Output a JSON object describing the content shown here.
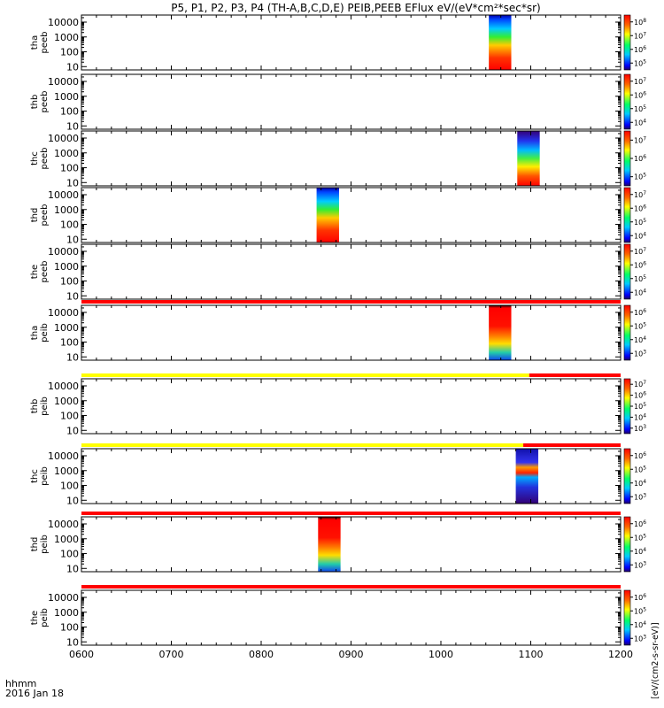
{
  "title": "P5, P1, P2, P3, P4 (TH-A,B,C,D,E) PEIB,PEEB EFlux eV/(eV*cm²*sec*sr)",
  "colorbar_label": "[eV/(cm2-s-sr-eV)]",
  "footer": {
    "time_unit": "hhmm",
    "date": "2016 Jan 18"
  },
  "colors": {
    "bar_red": "#ff0000",
    "bar_yellow": "#ffff00"
  },
  "chart_data": {
    "type": "heatmap",
    "x_axis": {
      "range": [
        "0600",
        "1200"
      ],
      "tick_labels": [
        "0600",
        "0700",
        "0800",
        "0900",
        "1000",
        "1100",
        "1200"
      ]
    },
    "y_axis": {
      "scale": "log",
      "range": [
        6,
        30000
      ],
      "tick_labels": [
        "10",
        "100",
        "1000",
        "10000"
      ]
    },
    "panels": [
      {
        "label": [
          "tha",
          "peeb"
        ],
        "cbar_exps": [
          "5",
          "6",
          "7",
          "8"
        ],
        "cbar_scale": "5",
        "blocks": [
          {
            "start": "1032",
            "end": "1047",
            "profile": "electron"
          }
        ]
      },
      {
        "label": [
          "thb",
          "peeb"
        ],
        "cbar_exps": [
          "4",
          "5",
          "6",
          "7"
        ],
        "cbar_scale": "4",
        "blocks": []
      },
      {
        "label": [
          "thc",
          "peeb"
        ],
        "cbar_exps": [
          "5",
          "6",
          "7"
        ],
        "cbar_scale": "5",
        "blocks": [
          {
            "start": "1051",
            "end": "1066",
            "profile": "electron_dark"
          }
        ]
      },
      {
        "label": [
          "thd",
          "peeb"
        ],
        "cbar_exps": [
          "4",
          "5",
          "6",
          "7"
        ],
        "cbar_scale": "4",
        "blocks": [
          {
            "start": "0837",
            "end": "0852",
            "profile": "electron"
          }
        ]
      },
      {
        "label": [
          "the",
          "peeb"
        ],
        "cbar_exps": [
          "4",
          "5",
          "6",
          "7"
        ],
        "cbar_scale": "4",
        "blocks": []
      },
      {
        "label": [
          "tha",
          "peib"
        ],
        "cbar_exps": [
          "3",
          "4",
          "5",
          "6"
        ],
        "cbar_scale": "3",
        "bar": [
          {
            "start": "0600",
            "end": "1200",
            "color": "red"
          }
        ],
        "blocks": [
          {
            "start": "1032",
            "end": "1047",
            "profile": "ion"
          }
        ]
      },
      {
        "label": [
          "thb",
          "peib"
        ],
        "cbar_exps": [
          "3",
          "4",
          "5",
          "6",
          "7"
        ],
        "cbar_scale": "3",
        "bar": [
          {
            "start": "0600",
            "end": "1059",
            "color": "yellow"
          },
          {
            "start": "1059",
            "end": "1200",
            "color": "red"
          }
        ],
        "blocks": []
      },
      {
        "label": [
          "thc",
          "peib"
        ],
        "cbar_exps": [
          "3",
          "4",
          "5",
          "6"
        ],
        "cbar_scale": "3",
        "bar": [
          {
            "start": "0600",
            "end": "1055",
            "color": "yellow"
          },
          {
            "start": "1055",
            "end": "1200",
            "color": "red"
          }
        ],
        "blocks": [
          {
            "start": "1050",
            "end": "1065",
            "profile": "ion_dark"
          }
        ]
      },
      {
        "label": [
          "thd",
          "peib"
        ],
        "cbar_exps": [
          "3",
          "4",
          "5",
          "6"
        ],
        "cbar_scale": "3",
        "bar": [
          {
            "start": "0600",
            "end": "1200",
            "color": "red"
          }
        ],
        "blocks": [
          {
            "start": "0838",
            "end": "0853",
            "profile": "ion"
          }
        ]
      },
      {
        "label": [
          "the",
          "peib"
        ],
        "cbar_exps": [
          "3",
          "4",
          "5",
          "6"
        ],
        "cbar_scale": "3",
        "bar": [
          {
            "start": "0600",
            "end": "1200",
            "color": "red"
          }
        ],
        "blocks": []
      }
    ]
  }
}
